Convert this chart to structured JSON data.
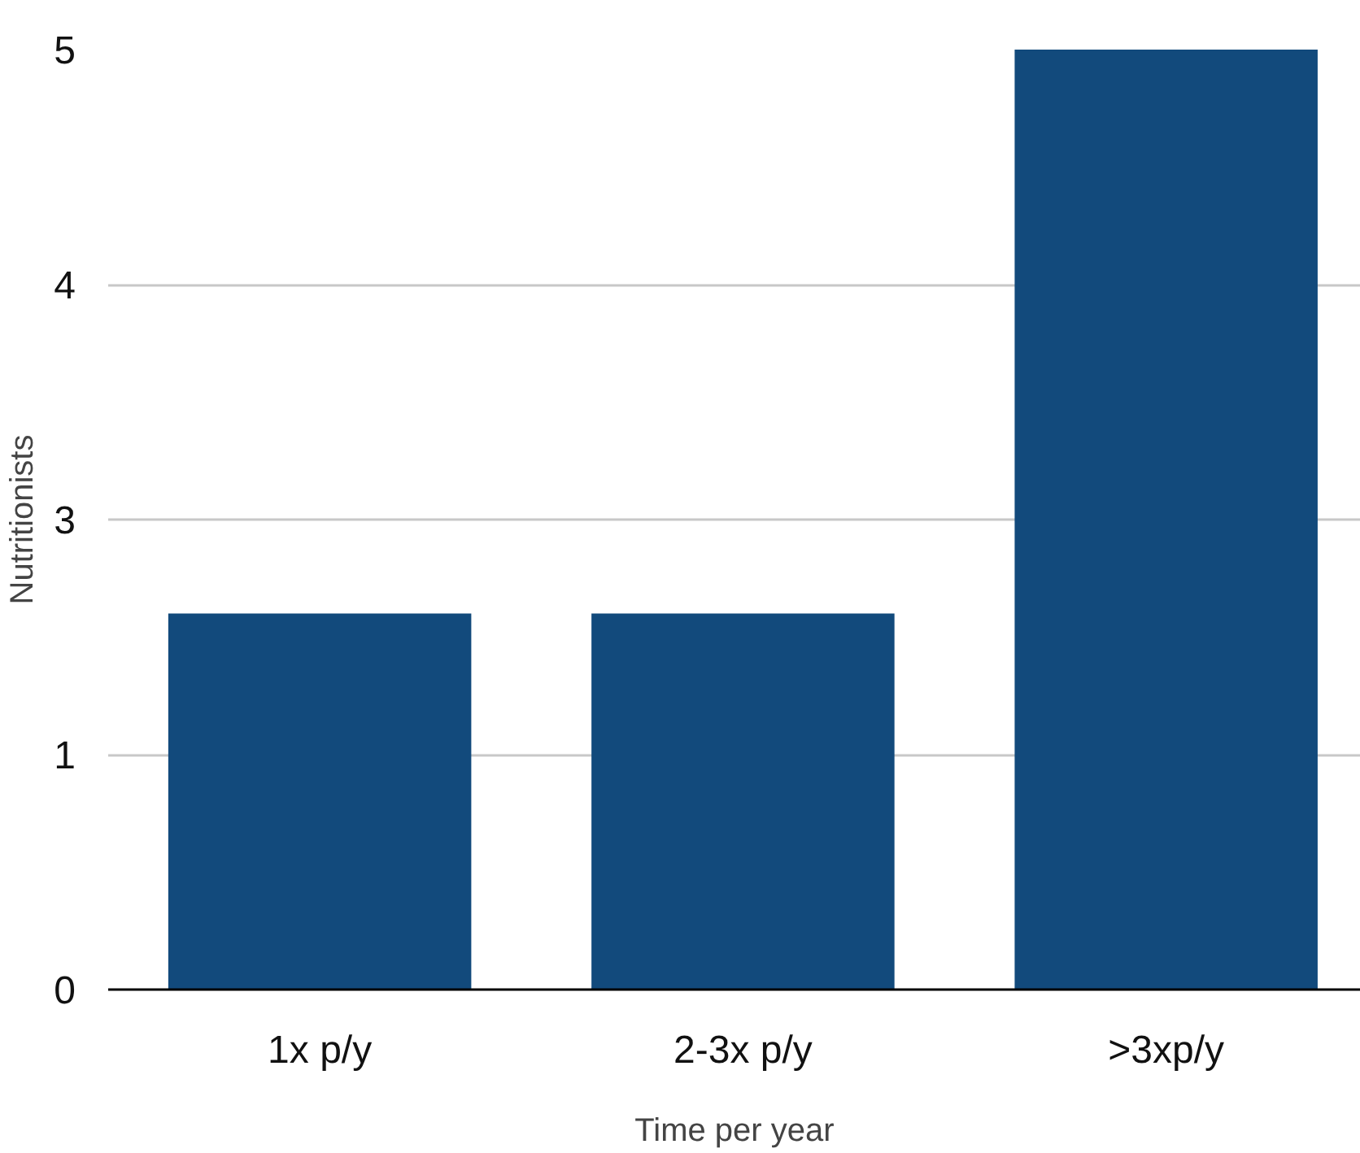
{
  "chart_data": {
    "type": "bar",
    "xlabel": "Time per year",
    "ylabel": "Nutritionists",
    "categories": [
      "1x p/y",
      "2-3x p/y",
      ">3xp/y"
    ],
    "values": [
      2,
      2,
      5
    ],
    "color": "#124a7c",
    "ylim": [
      0,
      5
    ],
    "yticks": [
      0,
      {
        "value": 1.25,
        "label": "1"
      },
      {
        "value": 2.5,
        "label": "3"
      },
      {
        "value": 3.75,
        "label": "4"
      },
      5
    ],
    "grid": "y"
  }
}
